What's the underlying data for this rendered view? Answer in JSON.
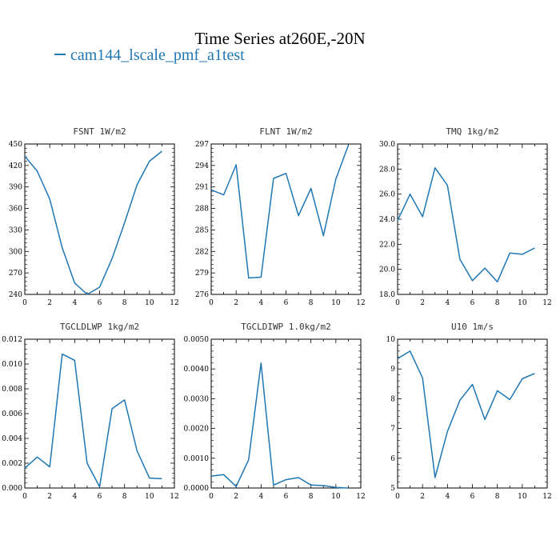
{
  "figure": {
    "title": "Time Series at260E,-20N",
    "legend_label": "cam144_lscale_pmf_a1test",
    "series_color": "#1f77b4"
  },
  "chart_data": [
    {
      "type": "line",
      "title": "FSNT   1W/m2",
      "x": [
        0,
        1,
        2,
        3,
        4,
        5,
        6,
        7,
        8,
        9,
        10,
        11
      ],
      "values": [
        433,
        412,
        373,
        305,
        256,
        240,
        250,
        290,
        340,
        393,
        426,
        440
      ],
      "xlim": [
        0,
        12
      ],
      "ylim": [
        240,
        450
      ],
      "xticks": [
        "0",
        "2",
        "4",
        "6",
        "8",
        "10",
        "12"
      ],
      "yticks": [
        "240",
        "270",
        "300",
        "330",
        "360",
        "390",
        "420",
        "450"
      ]
    },
    {
      "type": "line",
      "title": "FLNT   1W/m2",
      "x": [
        0,
        1,
        2,
        3,
        4,
        5,
        6,
        7,
        8,
        9,
        10,
        11
      ],
      "values": [
        290.6,
        289.9,
        294.1,
        278.3,
        278.4,
        292.2,
        292.9,
        287.0,
        290.8,
        284.2,
        292.1,
        296.8
      ],
      "xlim": [
        0,
        12
      ],
      "ylim": [
        276,
        297
      ],
      "xticks": [
        "0",
        "2",
        "4",
        "6",
        "8",
        "10",
        "12"
      ],
      "yticks": [
        "276",
        "279",
        "282",
        "285",
        "288",
        "291",
        "294",
        "297"
      ]
    },
    {
      "type": "line",
      "title": "TMQ   1kg/m2",
      "x": [
        0,
        1,
        2,
        3,
        4,
        5,
        6,
        7,
        8,
        9,
        10,
        11
      ],
      "values": [
        23.9,
        26.0,
        24.2,
        28.1,
        26.7,
        20.8,
        19.1,
        20.1,
        19.0,
        21.3,
        21.2,
        21.7
      ],
      "xlim": [
        0,
        12
      ],
      "ylim": [
        18,
        30
      ],
      "xticks": [
        "0",
        "2",
        "4",
        "6",
        "8",
        "10",
        "12"
      ],
      "yticks": [
        "18.0",
        "20.0",
        "22.0",
        "24.0",
        "26.0",
        "28.0",
        "30.0"
      ]
    },
    {
      "type": "line",
      "title": "TGCLDLWP   1kg/m2",
      "x": [
        0,
        1,
        2,
        3,
        4,
        5,
        6,
        7,
        8,
        9,
        10,
        11
      ],
      "values": [
        0.0016,
        0.0025,
        0.0017,
        0.0108,
        0.0103,
        0.002,
        0.0001,
        0.0064,
        0.0071,
        0.003,
        0.0008,
        0.00075
      ],
      "xlim": [
        0,
        12
      ],
      "ylim": [
        0,
        0.012
      ],
      "xticks": [
        "0",
        "2",
        "4",
        "6",
        "8",
        "10",
        "12"
      ],
      "yticks": [
        "0.000",
        "0.002",
        "0.004",
        "0.006",
        "0.008",
        "0.010",
        "0.012"
      ]
    },
    {
      "type": "line",
      "title": "TGCLDIWP   1.0kg/m2",
      "x": [
        0,
        1,
        2,
        3,
        4,
        5,
        6,
        7,
        8,
        9,
        10,
        11
      ],
      "values": [
        0.0004,
        0.00045,
        5e-05,
        0.00095,
        0.0042,
        0.0001,
        0.00028,
        0.00035,
        0.0001,
        8e-05,
        2e-05,
        0.0
      ],
      "xlim": [
        0,
        12
      ],
      "ylim": [
        0,
        0.005
      ],
      "xticks": [
        "0",
        "2",
        "4",
        "6",
        "8",
        "10",
        "12"
      ],
      "yticks": [
        "0.0000",
        "0.0010",
        "0.0020",
        "0.0030",
        "0.0040",
        "0.0050"
      ]
    },
    {
      "type": "line",
      "title": "U10   1m/s",
      "x": [
        0,
        1,
        2,
        3,
        4,
        5,
        6,
        7,
        8,
        9,
        10,
        11
      ],
      "values": [
        9.35,
        9.6,
        8.7,
        5.35,
        6.9,
        7.95,
        8.48,
        7.3,
        8.27,
        7.97,
        8.67,
        8.85
      ],
      "xlim": [
        0,
        12
      ],
      "ylim": [
        5,
        10
      ],
      "xticks": [
        "0",
        "2",
        "4",
        "6",
        "8",
        "10",
        "12"
      ],
      "yticks": [
        "5",
        "6",
        "7",
        "8",
        "9",
        "10"
      ]
    }
  ]
}
